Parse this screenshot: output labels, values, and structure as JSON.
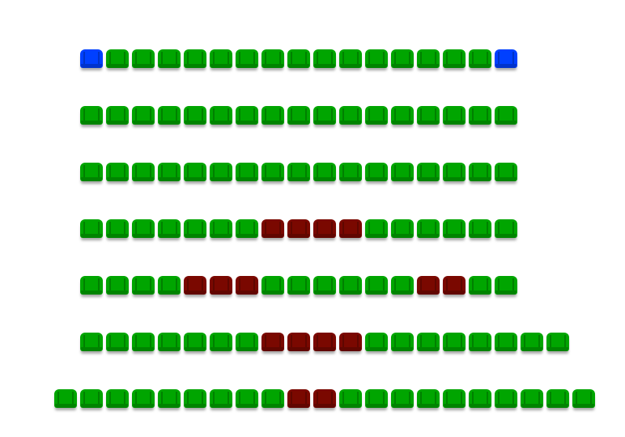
{
  "seat_map": {
    "status_colors": {
      "available": "#00a500",
      "sold": "#7a0800",
      "selected": "#0040ff"
    },
    "rows": [
      {
        "seats": [
          "selected",
          "available",
          "available",
          "available",
          "available",
          "available",
          "available",
          "available",
          "available",
          "available",
          "available",
          "available",
          "available",
          "available",
          "available",
          "available",
          "selected"
        ]
      },
      {
        "seats": [
          "available",
          "available",
          "available",
          "available",
          "available",
          "available",
          "available",
          "available",
          "available",
          "available",
          "available",
          "available",
          "available",
          "available",
          "available",
          "available",
          "available"
        ]
      },
      {
        "seats": [
          "available",
          "available",
          "available",
          "available",
          "available",
          "available",
          "available",
          "available",
          "available",
          "available",
          "available",
          "available",
          "available",
          "available",
          "available",
          "available",
          "available"
        ]
      },
      {
        "seats": [
          "available",
          "available",
          "available",
          "available",
          "available",
          "available",
          "available",
          "sold",
          "sold",
          "sold",
          "sold",
          "available",
          "available",
          "available",
          "available",
          "available",
          "available"
        ]
      },
      {
        "seats": [
          "available",
          "available",
          "available",
          "available",
          "sold",
          "sold",
          "sold",
          "available",
          "available",
          "available",
          "available",
          "available",
          "available",
          "sold",
          "sold",
          "available",
          "available"
        ]
      },
      {
        "seats": [
          "available",
          "available",
          "available",
          "available",
          "available",
          "available",
          "available",
          "sold",
          "sold",
          "sold",
          "sold",
          "available",
          "available",
          "available",
          "available",
          "available",
          "available",
          "available",
          "available"
        ]
      },
      {
        "seats": [
          "available",
          "available",
          "available",
          "available",
          "available",
          "available",
          "available",
          "available",
          "available",
          "sold",
          "sold",
          "available",
          "available",
          "available",
          "available",
          "available",
          "available",
          "available",
          "available",
          "available",
          "available"
        ]
      }
    ]
  }
}
